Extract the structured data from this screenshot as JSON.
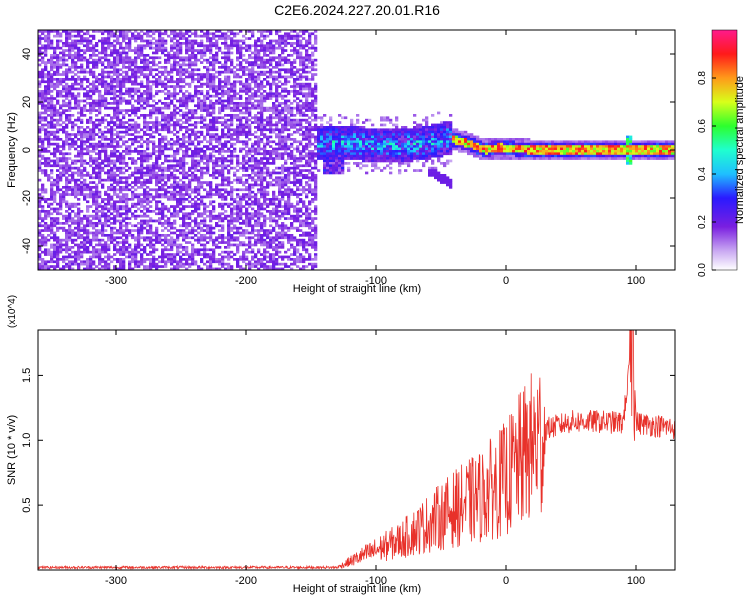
{
  "figure": {
    "title": "C2E6.2024.227.20.01.R16"
  },
  "chart_data": [
    {
      "type": "heatmap",
      "xlabel": "Height of straight line (km)",
      "ylabel": "Frequency (Hz)",
      "xlim": [
        -360,
        130
      ],
      "ylim": [
        -50,
        50
      ],
      "xticks": [
        -300,
        -200,
        -100,
        0,
        100
      ],
      "yticks": [
        -40,
        -20,
        0,
        20,
        40
      ],
      "colorbar": {
        "label": "Normalized spectral amplitude",
        "range": [
          0,
          1
        ],
        "ticks": [
          0.0,
          0.2,
          0.4,
          0.6,
          0.8
        ],
        "tick_labels": [
          "0.0",
          "0.2",
          "0.4",
          "0.6",
          "0.8"
        ],
        "colormap": "rainbow (white-violet-blue-cyan-green-yellow-red-magenta)"
      },
      "regions": [
        {
          "x_range": [
            -360,
            -145
          ],
          "freq_range": [
            -50,
            50
          ],
          "amplitude": "low noise (0.05-0.2)"
        },
        {
          "x_range": [
            -145,
            -40
          ],
          "freq_range": [
            -8,
            8
          ],
          "amplitude": "0.3-0.6 scattered"
        },
        {
          "x_range": [
            -40,
            130
          ],
          "freq_range": [
            -2,
            2
          ],
          "amplitude": "0.6-0.95 narrow line"
        }
      ],
      "line_trace": [
        {
          "x": -140,
          "f": 3
        },
        {
          "x": -120,
          "f": 3
        },
        {
          "x": -100,
          "f": 2
        },
        {
          "x": -80,
          "f": 2
        },
        {
          "x": -60,
          "f": 3
        },
        {
          "x": -45,
          "f": 5
        },
        {
          "x": -30,
          "f": 3
        },
        {
          "x": -15,
          "f": 0
        },
        {
          "x": -5,
          "f": 1
        },
        {
          "x": 20,
          "f": 0
        },
        {
          "x": 60,
          "f": 0
        },
        {
          "x": 95,
          "f": 0
        },
        {
          "x": 130,
          "f": 0
        }
      ],
      "grid": false
    },
    {
      "type": "line",
      "xlabel": "Height of straight line (km)",
      "ylabel": "SNR (10 * v/v)",
      "yscale_label": "(x10^4)",
      "xlim": [
        -360,
        130
      ],
      "ylim": [
        0,
        1.85
      ],
      "xticks": [
        -300,
        -200,
        -100,
        0,
        100
      ],
      "yticks": [
        0.5,
        1.0,
        1.5
      ],
      "ytick_labels": [
        "0.5",
        "1.0",
        "1.5"
      ],
      "series_color": "#e8312a",
      "envelope": [
        {
          "x": -360,
          "y": 0.02
        },
        {
          "x": -130,
          "y": 0.02
        },
        {
          "x": -110,
          "y": 0.12
        },
        {
          "x": -80,
          "y": 0.25
        },
        {
          "x": -60,
          "y": 0.38
        },
        {
          "x": -40,
          "y": 0.5
        },
        {
          "x": -20,
          "y": 0.6
        },
        {
          "x": 0,
          "y": 0.75
        },
        {
          "x": 15,
          "y": 0.95
        },
        {
          "x": 30,
          "y": 1.12
        },
        {
          "x": 50,
          "y": 1.18
        },
        {
          "x": 70,
          "y": 1.18
        },
        {
          "x": 90,
          "y": 1.17
        },
        {
          "x": 98,
          "y": 1.85
        },
        {
          "x": 100,
          "y": 1.17
        },
        {
          "x": 130,
          "y": 1.13
        }
      ],
      "grid": false
    }
  ]
}
